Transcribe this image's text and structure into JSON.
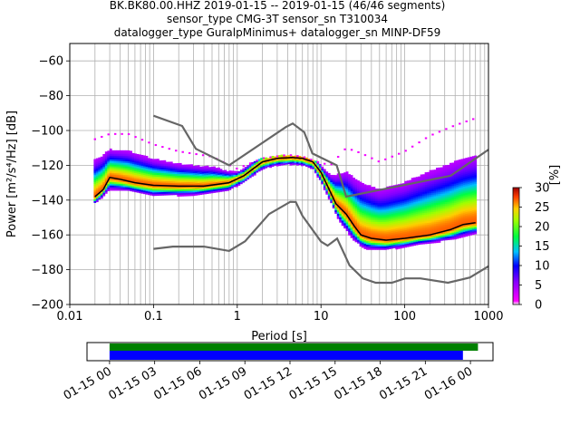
{
  "title_lines": [
    "BK.BK80.00.HHZ   2019-01-15 -- 2019-01-15  (46/46 segments)",
    "sensor_type CMG-3T sensor_sn T310034",
    "datalogger_type GuralpMinimus+ datalogger_sn MINP-DF59"
  ],
  "colors": {
    "noise_model": "#666666",
    "mode_line": "#000000",
    "grid": "#b0b0b0",
    "coverage_top": "#008000",
    "coverage_bottom": "#0000ff"
  },
  "chart_data": [
    {
      "type": "heatmap",
      "title": "BK.BK80.00.HHZ   2019-01-15 -- 2019-01-15  (46/46 segments)",
      "xlabel": "Period [s]",
      "ylabel": "Power [m²/s⁴/Hz] [dB]",
      "xscale": "log",
      "xlim": [
        0.01,
        1000
      ],
      "ylim": [
        -200,
        -50
      ],
      "x_ticks": [
        {
          "value": 0.01,
          "label": "0.01"
        },
        {
          "value": 0.1,
          "label": "0.1"
        },
        {
          "value": 1,
          "label": "1"
        },
        {
          "value": 10,
          "label": "10"
        },
        {
          "value": 100,
          "label": "100"
        },
        {
          "value": 1000,
          "label": "1000"
        }
      ],
      "y_ticks": [
        -60,
        -80,
        -100,
        -120,
        -140,
        -160,
        -180,
        -200
      ],
      "grid": true,
      "colorbar": {
        "label": "[%]",
        "ticks": [
          0,
          5,
          10,
          15,
          20,
          25,
          30
        ],
        "range": [
          0,
          30
        ]
      },
      "series": [
        {
          "kind": "noise_model_high",
          "points": [
            [
              0.1,
              -91.5
            ],
            [
              0.22,
              -97.4
            ],
            [
              0.32,
              -110.5
            ],
            [
              0.8,
              -120
            ],
            [
              3.8,
              -98
            ],
            [
              4.6,
              -96
            ],
            [
              6.3,
              -101
            ],
            [
              7.9,
              -113.2
            ],
            [
              15.4,
              -120
            ],
            [
              20,
              -138
            ],
            [
              354,
              -126
            ],
            [
              1000,
              -111
            ]
          ]
        },
        {
          "kind": "noise_model_low",
          "points": [
            [
              0.1,
              -168
            ],
            [
              0.17,
              -166.7
            ],
            [
              0.4,
              -166.7
            ],
            [
              0.8,
              -169.2
            ],
            [
              1.24,
              -163.7
            ],
            [
              2.4,
              -148
            ],
            [
              4.3,
              -141
            ],
            [
              5.0,
              -141.1
            ],
            [
              6.0,
              -149
            ],
            [
              10,
              -163.8
            ],
            [
              12,
              -166.2
            ],
            [
              15.6,
              -162.1
            ],
            [
              21.9,
              -177.5
            ],
            [
              31.6,
              -185
            ],
            [
              45,
              -187.5
            ],
            [
              70,
              -187.5
            ],
            [
              101,
              -185
            ],
            [
              154,
              -185
            ],
            [
              328,
              -187.5
            ],
            [
              600,
              -184.5
            ],
            [
              1000,
              -178
            ]
          ]
        },
        {
          "kind": "mode",
          "points": [
            [
              0.02,
              -138
            ],
            [
              0.025,
              -134
            ],
            [
              0.03,
              -127
            ],
            [
              0.04,
              -128
            ],
            [
              0.06,
              -130
            ],
            [
              0.1,
              -131.5
            ],
            [
              0.2,
              -132
            ],
            [
              0.4,
              -132
            ],
            [
              0.8,
              -130
            ],
            [
              1.2,
              -126
            ],
            [
              2,
              -118
            ],
            [
              3,
              -116
            ],
            [
              4.5,
              -115.5
            ],
            [
              6,
              -116
            ],
            [
              8,
              -118
            ],
            [
              10,
              -124
            ],
            [
              12,
              -132
            ],
            [
              15,
              -142
            ],
            [
              20,
              -148
            ],
            [
              25,
              -155
            ],
            [
              30,
              -160
            ],
            [
              40,
              -162
            ],
            [
              60,
              -163
            ],
            [
              100,
              -162
            ],
            [
              200,
              -160
            ],
            [
              350,
              -157
            ],
            [
              500,
              -154
            ],
            [
              700,
              -153
            ]
          ]
        },
        {
          "kind": "envelope_upper",
          "points": [
            [
              0.02,
              -105
            ],
            [
              0.03,
              -102
            ],
            [
              0.05,
              -102
            ],
            [
              0.1,
              -108
            ],
            [
              0.2,
              -112
            ],
            [
              0.5,
              -115
            ],
            [
              1,
              -122
            ],
            [
              2,
              -116
            ],
            [
              4,
              -114
            ],
            [
              6,
              -115
            ],
            [
              9,
              -118
            ],
            [
              13,
              -120
            ],
            [
              20,
              -110
            ],
            [
              30,
              -113
            ],
            [
              50,
              -118
            ],
            [
              100,
              -112
            ],
            [
              200,
              -103
            ],
            [
              400,
              -97
            ],
            [
              700,
              -93
            ]
          ]
        },
        {
          "kind": "envelope_lower",
          "points": [
            [
              0.02,
              -141
            ],
            [
              0.03,
              -138
            ],
            [
              0.05,
              -138
            ],
            [
              0.1,
              -141
            ],
            [
              0.3,
              -140
            ],
            [
              0.8,
              -137
            ],
            [
              1.5,
              -128
            ],
            [
              3,
              -121
            ],
            [
              5,
              -119
            ],
            [
              8,
              -124
            ],
            [
              12,
              -140
            ],
            [
              18,
              -160
            ],
            [
              25,
              -168
            ],
            [
              35,
              -172
            ],
            [
              60,
              -172
            ],
            [
              150,
              -168
            ],
            [
              400,
              -166
            ],
            [
              700,
              -163
            ]
          ]
        }
      ]
    },
    {
      "type": "bar",
      "title": "data coverage",
      "x_tick_labels": [
        "01-15 00",
        "01-15 03",
        "01-15 06",
        "01-15 09",
        "01-15 12",
        "01-15 15",
        "01-15 18",
        "01-15 21",
        "01-16 00"
      ],
      "xlim_hours": [
        -1.5,
        25.5
      ],
      "series": [
        {
          "kind": "coverage_top",
          "start_hour": 0.0,
          "end_hour": 24.5
        },
        {
          "kind": "coverage_bottom",
          "start_hour": 0.0,
          "end_hour": 23.5
        }
      ]
    }
  ]
}
